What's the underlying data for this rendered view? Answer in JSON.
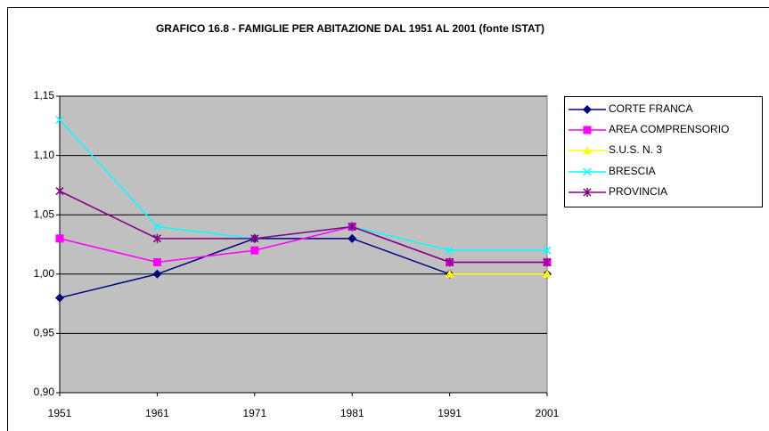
{
  "chart_data": {
    "type": "line",
    "title": "GRAFICO 16.8 - FAMIGLIE PER ABITAZIONE DAL 1951 AL 2001 (fonte ISTAT)",
    "categories": [
      "1951",
      "1961",
      "1971",
      "1981",
      "1991",
      "2001"
    ],
    "series": [
      {
        "name": "CORTE FRANCA",
        "color": "#000080",
        "marker": "diamond",
        "values": [
          0.98,
          1.0,
          1.03,
          1.03,
          1.0,
          1.0
        ]
      },
      {
        "name": "AREA COMPRENSORIO",
        "color": "#ff00ff",
        "marker": "square",
        "values": [
          1.03,
          1.01,
          1.02,
          1.04,
          1.01,
          1.01
        ]
      },
      {
        "name": "S.U.S. N. 3",
        "color": "#ffff00",
        "marker": "triangle",
        "values": [
          null,
          null,
          null,
          null,
          1.0,
          1.0
        ]
      },
      {
        "name": "BRESCIA",
        "color": "#00ffff",
        "marker": "x",
        "values": [
          1.13,
          1.04,
          1.03,
          1.04,
          1.02,
          1.02
        ]
      },
      {
        "name": "PROVINCIA",
        "color": "#800080",
        "marker": "star",
        "values": [
          1.07,
          1.03,
          1.03,
          1.04,
          1.01,
          1.01
        ]
      }
    ],
    "ylim": [
      0.9,
      1.15
    ],
    "yticks": [
      {
        "value": 0.9,
        "label": "0,90"
      },
      {
        "value": 0.95,
        "label": "0,95"
      },
      {
        "value": 1.0,
        "label": "1,00"
      },
      {
        "value": 1.05,
        "label": "1,05"
      },
      {
        "value": 1.1,
        "label": "1,10"
      },
      {
        "value": 1.15,
        "label": "1,15"
      }
    ],
    "grid": true,
    "plot_background": "#c0c0c0",
    "legend": "right"
  }
}
